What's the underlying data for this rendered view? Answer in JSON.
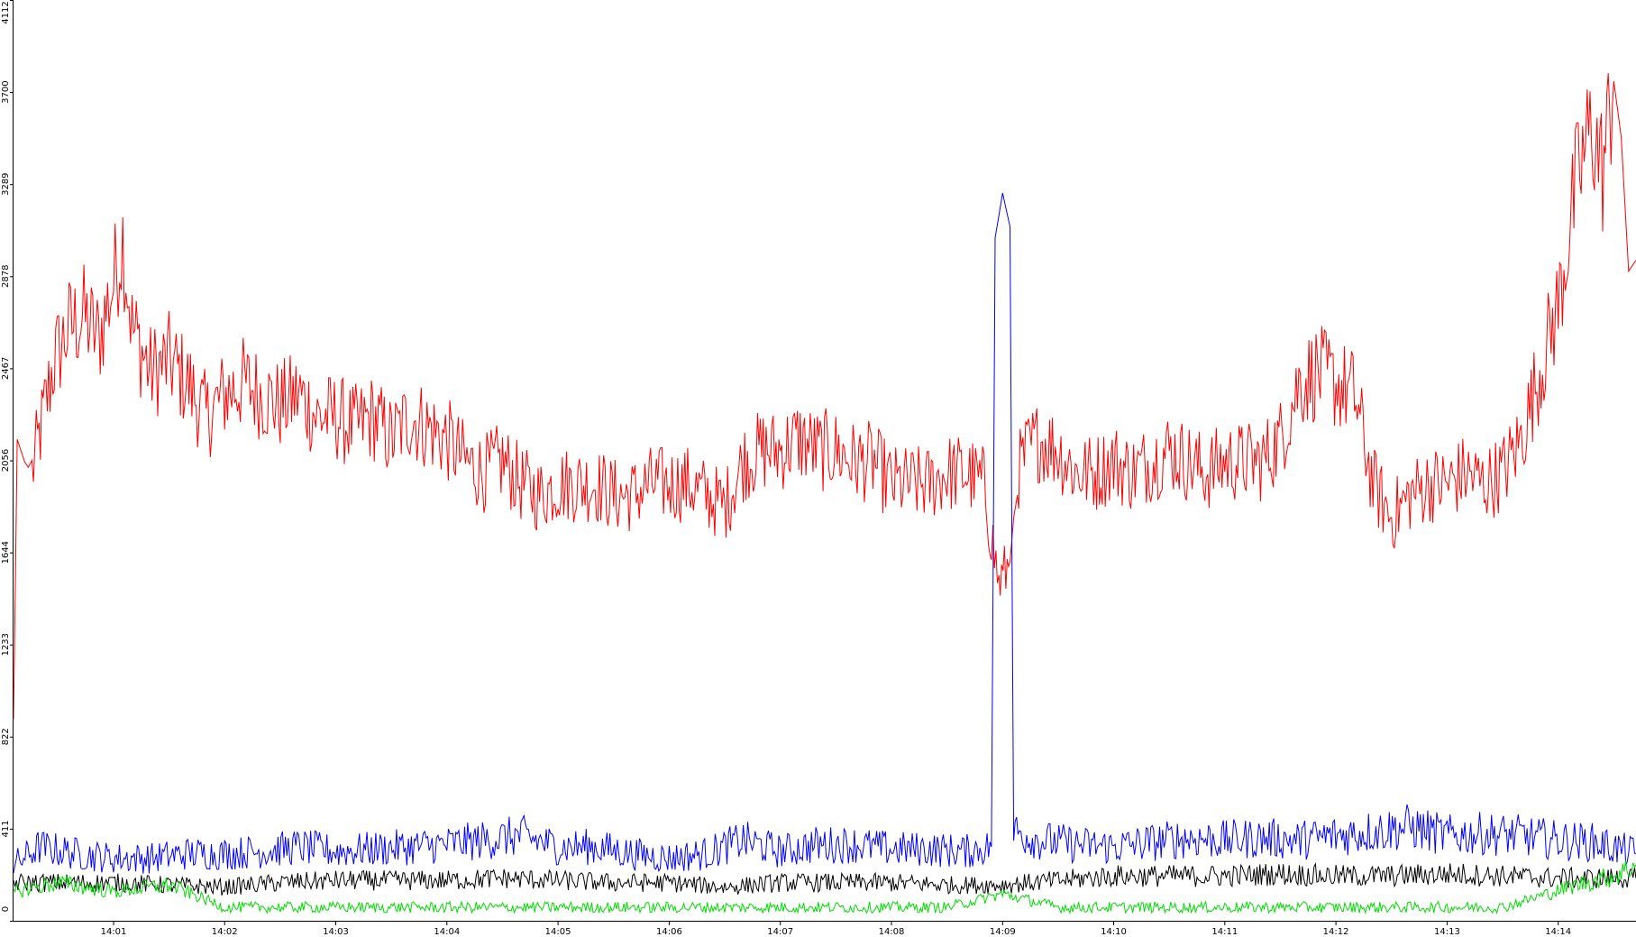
{
  "chart_data": {
    "type": "line",
    "title": "",
    "xlabel": "",
    "ylabel": "",
    "ylim": [
      0,
      4112
    ],
    "xlim": [
      "14:00:06",
      "14:14:42"
    ],
    "y_ticks": [
      "0",
      "411",
      "822",
      "1233",
      "1644",
      "2056",
      "2467",
      "2878",
      "3289",
      "3700",
      "4112"
    ],
    "x_ticks": [
      {
        "time": "14:01",
        "label": "14:01"
      },
      {
        "time": "14:02",
        "label": "14:02"
      },
      {
        "time": "14:03",
        "label": "14:03"
      },
      {
        "time": "14:04",
        "label": "14:04"
      },
      {
        "time": "14:05",
        "label": "14:05"
      },
      {
        "time": "14:06",
        "label": "14:06"
      },
      {
        "time": "14:07",
        "label": "14:07"
      },
      {
        "time": "14:08",
        "label": "14:08"
      },
      {
        "time": "14:09",
        "label": "14:09"
      },
      {
        "time": "14:10",
        "label": "14:10"
      },
      {
        "time": "14:11",
        "label": "14:11"
      },
      {
        "time": "14:12",
        "label": "14:12"
      },
      {
        "time": "14:13",
        "label": "14:13"
      },
      {
        "time": "14:14",
        "label": "14:14"
      }
    ],
    "grid": false,
    "legend": "none",
    "series": [
      {
        "color": "#ff0000",
        "points": [
          [
            "14:00:06",
            900
          ],
          [
            "14:00:08",
            2150
          ],
          [
            "14:00:12",
            2050
          ],
          [
            "14:00:16",
            2000
          ],
          [
            "14:00:22",
            2250
          ],
          [
            "14:00:28",
            2500
          ],
          [
            "14:00:36",
            2650
          ],
          [
            "14:00:44",
            2700
          ],
          [
            "14:00:52",
            2600
          ],
          [
            "14:01:00",
            2850
          ],
          [
            "14:01:05",
            3050
          ],
          [
            "14:01:10",
            2650
          ],
          [
            "14:01:20",
            2450
          ],
          [
            "14:01:30",
            2500
          ],
          [
            "14:01:40",
            2400
          ],
          [
            "14:01:50",
            2250
          ],
          [
            "14:02:00",
            2350
          ],
          [
            "14:02:10",
            2400
          ],
          [
            "14:02:20",
            2350
          ],
          [
            "14:02:30",
            2300
          ],
          [
            "14:02:40",
            2350
          ],
          [
            "14:02:50",
            2250
          ],
          [
            "14:03:00",
            2250
          ],
          [
            "14:03:10",
            2200
          ],
          [
            "14:03:20",
            2250
          ],
          [
            "14:03:30",
            2150
          ],
          [
            "14:03:40",
            2250
          ],
          [
            "14:03:50",
            2200
          ],
          [
            "14:04:00",
            2150
          ],
          [
            "14:04:10",
            2050
          ],
          [
            "14:04:20",
            2000
          ],
          [
            "14:04:30",
            2050
          ],
          [
            "14:04:40",
            1950
          ],
          [
            "14:04:50",
            1900
          ],
          [
            "14:05:00",
            1950
          ],
          [
            "14:05:10",
            1950
          ],
          [
            "14:05:20",
            1950
          ],
          [
            "14:05:30",
            1900
          ],
          [
            "14:05:40",
            1900
          ],
          [
            "14:05:50",
            1950
          ],
          [
            "14:06:00",
            1950
          ],
          [
            "14:06:10",
            1950
          ],
          [
            "14:06:20",
            1900
          ],
          [
            "14:06:30",
            1850
          ],
          [
            "14:06:40",
            2050
          ],
          [
            "14:06:50",
            2100
          ],
          [
            "14:07:00",
            2100
          ],
          [
            "14:07:10",
            2150
          ],
          [
            "14:07:20",
            2100
          ],
          [
            "14:07:30",
            2100
          ],
          [
            "14:07:40",
            2050
          ],
          [
            "14:07:50",
            2050
          ],
          [
            "14:08:00",
            1950
          ],
          [
            "14:08:10",
            1950
          ],
          [
            "14:08:20",
            1950
          ],
          [
            "14:08:30",
            2000
          ],
          [
            "14:08:40",
            2000
          ],
          [
            "14:08:50",
            1950
          ],
          [
            "14:08:58",
            1500
          ],
          [
            "14:09:04",
            1600
          ],
          [
            "14:09:08",
            2000
          ],
          [
            "14:09:14",
            2100
          ],
          [
            "14:09:20",
            2150
          ],
          [
            "14:09:30",
            2100
          ],
          [
            "14:09:40",
            2000
          ],
          [
            "14:09:50",
            2000
          ],
          [
            "14:10:00",
            2050
          ],
          [
            "14:10:10",
            2000
          ],
          [
            "14:10:20",
            2050
          ],
          [
            "14:10:30",
            2100
          ],
          [
            "14:10:40",
            2050
          ],
          [
            "14:10:50",
            2000
          ],
          [
            "14:11:00",
            2050
          ],
          [
            "14:11:10",
            2050
          ],
          [
            "14:11:20",
            2050
          ],
          [
            "14:11:30",
            2150
          ],
          [
            "14:11:40",
            2400
          ],
          [
            "14:11:50",
            2450
          ],
          [
            "14:12:00",
            2400
          ],
          [
            "14:12:10",
            2350
          ],
          [
            "14:12:20",
            1950
          ],
          [
            "14:12:30",
            1800
          ],
          [
            "14:12:40",
            1900
          ],
          [
            "14:12:50",
            1950
          ],
          [
            "14:13:00",
            1950
          ],
          [
            "14:13:10",
            2000
          ],
          [
            "14:13:20",
            1950
          ],
          [
            "14:13:30",
            2000
          ],
          [
            "14:13:40",
            2150
          ],
          [
            "14:13:50",
            2450
          ],
          [
            "14:14:00",
            2750
          ],
          [
            "14:14:10",
            3300
          ],
          [
            "14:14:18",
            3550
          ],
          [
            "14:14:24",
            3350
          ],
          [
            "14:14:30",
            3750
          ],
          [
            "14:14:34",
            3500
          ],
          [
            "14:14:38",
            2900
          ],
          [
            "14:14:42",
            2950
          ]
        ]
      },
      {
        "color": "#0000ff",
        "points": [
          [
            "14:00:06",
            250
          ],
          [
            "14:00:20",
            330
          ],
          [
            "14:00:40",
            300
          ],
          [
            "14:01:00",
            280
          ],
          [
            "14:01:20",
            280
          ],
          [
            "14:01:40",
            300
          ],
          [
            "14:02:00",
            300
          ],
          [
            "14:02:20",
            310
          ],
          [
            "14:02:40",
            330
          ],
          [
            "14:03:00",
            310
          ],
          [
            "14:03:20",
            320
          ],
          [
            "14:03:40",
            330
          ],
          [
            "14:04:00",
            340
          ],
          [
            "14:04:20",
            360
          ],
          [
            "14:04:40",
            380
          ],
          [
            "14:05:00",
            330
          ],
          [
            "14:05:20",
            330
          ],
          [
            "14:05:40",
            300
          ],
          [
            "14:06:00",
            280
          ],
          [
            "14:06:20",
            300
          ],
          [
            "14:06:40",
            360
          ],
          [
            "14:07:00",
            310
          ],
          [
            "14:07:20",
            340
          ],
          [
            "14:07:40",
            340
          ],
          [
            "14:08:00",
            320
          ],
          [
            "14:08:20",
            320
          ],
          [
            "14:08:40",
            310
          ],
          [
            "14:08:54",
            330
          ],
          [
            "14:08:56",
            3050
          ],
          [
            "14:09:00",
            3250
          ],
          [
            "14:09:04",
            3100
          ],
          [
            "14:09:06",
            400
          ],
          [
            "14:09:20",
            360
          ],
          [
            "14:09:40",
            340
          ],
          [
            "14:10:00",
            330
          ],
          [
            "14:10:20",
            350
          ],
          [
            "14:10:40",
            370
          ],
          [
            "14:11:00",
            360
          ],
          [
            "14:11:20",
            370
          ],
          [
            "14:11:40",
            360
          ],
          [
            "14:12:00",
            380
          ],
          [
            "14:12:20",
            400
          ],
          [
            "14:12:40",
            420
          ],
          [
            "14:13:00",
            380
          ],
          [
            "14:13:20",
            390
          ],
          [
            "14:13:40",
            380
          ],
          [
            "14:14:00",
            360
          ],
          [
            "14:14:20",
            350
          ],
          [
            "14:14:42",
            300
          ]
        ]
      },
      {
        "color": "#000000",
        "points": [
          [
            "14:00:06",
            170
          ],
          [
            "14:00:30",
            170
          ],
          [
            "14:01:00",
            170
          ],
          [
            "14:01:30",
            160
          ],
          [
            "14:02:00",
            150
          ],
          [
            "14:02:30",
            170
          ],
          [
            "14:03:00",
            180
          ],
          [
            "14:03:30",
            180
          ],
          [
            "14:04:00",
            180
          ],
          [
            "14:04:30",
            190
          ],
          [
            "14:05:00",
            180
          ],
          [
            "14:05:30",
            170
          ],
          [
            "14:06:00",
            170
          ],
          [
            "14:06:30",
            150
          ],
          [
            "14:07:00",
            170
          ],
          [
            "14:07:30",
            170
          ],
          [
            "14:08:00",
            170
          ],
          [
            "14:08:30",
            160
          ],
          [
            "14:09:00",
            160
          ],
          [
            "14:09:30",
            180
          ],
          [
            "14:10:00",
            200
          ],
          [
            "14:10:30",
            200
          ],
          [
            "14:11:00",
            200
          ],
          [
            "14:11:30",
            210
          ],
          [
            "14:12:00",
            200
          ],
          [
            "14:12:30",
            200
          ],
          [
            "14:13:00",
            210
          ],
          [
            "14:13:30",
            200
          ],
          [
            "14:14:00",
            190
          ],
          [
            "14:14:42",
            190
          ]
        ]
      },
      {
        "color": "#00dd00",
        "points": [
          [
            "14:00:06",
            130
          ],
          [
            "14:00:30",
            170
          ],
          [
            "14:01:00",
            130
          ],
          [
            "14:01:30",
            160
          ],
          [
            "14:02:00",
            60
          ],
          [
            "14:02:30",
            60
          ],
          [
            "14:03:00",
            60
          ],
          [
            "14:03:30",
            60
          ],
          [
            "14:04:00",
            60
          ],
          [
            "14:04:30",
            60
          ],
          [
            "14:05:00",
            60
          ],
          [
            "14:05:30",
            60
          ],
          [
            "14:06:00",
            60
          ],
          [
            "14:06:30",
            60
          ],
          [
            "14:07:00",
            60
          ],
          [
            "14:07:30",
            60
          ],
          [
            "14:08:00",
            60
          ],
          [
            "14:08:30",
            60
          ],
          [
            "14:09:00",
            120
          ],
          [
            "14:09:30",
            60
          ],
          [
            "14:10:00",
            60
          ],
          [
            "14:10:30",
            60
          ],
          [
            "14:11:00",
            60
          ],
          [
            "14:11:30",
            60
          ],
          [
            "14:12:00",
            60
          ],
          [
            "14:12:30",
            60
          ],
          [
            "14:13:00",
            60
          ],
          [
            "14:13:30",
            60
          ],
          [
            "14:13:50",
            110
          ],
          [
            "14:14:10",
            160
          ],
          [
            "14:14:30",
            200
          ],
          [
            "14:14:42",
            250
          ]
        ]
      }
    ]
  }
}
